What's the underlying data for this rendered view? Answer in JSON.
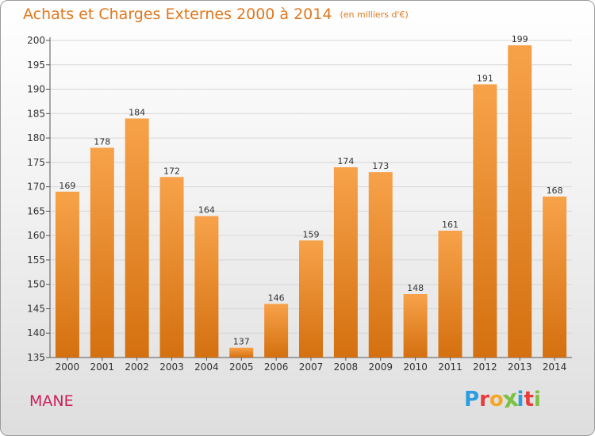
{
  "title": "Achats et Charges Externes 2000 à 2014",
  "subtitle": "(en milliers d'€)",
  "commune": "MANE",
  "logo": {
    "letters": [
      "P",
      "r",
      "o",
      "x",
      "i",
      "t",
      "i"
    ],
    "colors": [
      "#2b9de0",
      "#e83b3b",
      "#f5a623",
      "#7cc242",
      "#2b9de0",
      "#e83b3b",
      "#7cc242"
    ]
  },
  "colors": {
    "bar_top": "#f7a24a",
    "bar_bottom": "#d4700f",
    "title": "#e0781e",
    "commune": "#cc1f5a"
  },
  "chart_data": {
    "type": "bar",
    "categories": [
      "2000",
      "2001",
      "2002",
      "2003",
      "2004",
      "2005",
      "2006",
      "2007",
      "2008",
      "2009",
      "2010",
      "2011",
      "2012",
      "2013",
      "2014"
    ],
    "values": [
      169,
      178,
      184,
      172,
      164,
      137,
      146,
      159,
      174,
      173,
      148,
      161,
      191,
      199,
      168
    ],
    "data_labels": [
      "169",
      "178",
      "184",
      "172",
      "164",
      "137",
      "146",
      "159",
      "174",
      "173",
      "148",
      "161",
      "191",
      "199",
      "168"
    ],
    "ylim": [
      135,
      200
    ],
    "yticks": [
      135,
      140,
      145,
      150,
      155,
      160,
      165,
      170,
      175,
      180,
      185,
      190,
      195,
      200
    ],
    "grid": true,
    "xlabel": "",
    "ylabel": ""
  }
}
